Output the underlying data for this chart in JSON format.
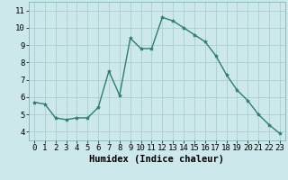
{
  "x": [
    0,
    1,
    2,
    3,
    4,
    5,
    6,
    7,
    8,
    9,
    10,
    11,
    12,
    13,
    14,
    15,
    16,
    17,
    18,
    19,
    20,
    21,
    22,
    23
  ],
  "y": [
    5.7,
    5.6,
    4.8,
    4.7,
    4.8,
    4.8,
    5.4,
    7.5,
    6.1,
    9.4,
    8.8,
    8.8,
    10.6,
    10.4,
    10.0,
    9.6,
    9.2,
    8.4,
    7.3,
    6.4,
    5.8,
    5.0,
    4.4,
    3.9
  ],
  "line_color": "#2e7d6e",
  "marker": "*",
  "marker_size": 3,
  "bg_color": "#cce8ea",
  "grid_color": "#aacfd2",
  "xlabel": "Humidex (Indice chaleur)",
  "ylim": [
    3.5,
    11.5
  ],
  "xlim": [
    -0.5,
    23.5
  ],
  "yticks": [
    4,
    5,
    6,
    7,
    8,
    9,
    10,
    11
  ],
  "xticks": [
    0,
    1,
    2,
    3,
    4,
    5,
    6,
    7,
    8,
    9,
    10,
    11,
    12,
    13,
    14,
    15,
    16,
    17,
    18,
    19,
    20,
    21,
    22,
    23
  ],
  "xlabel_fontsize": 7.5,
  "tick_fontsize": 6.5
}
